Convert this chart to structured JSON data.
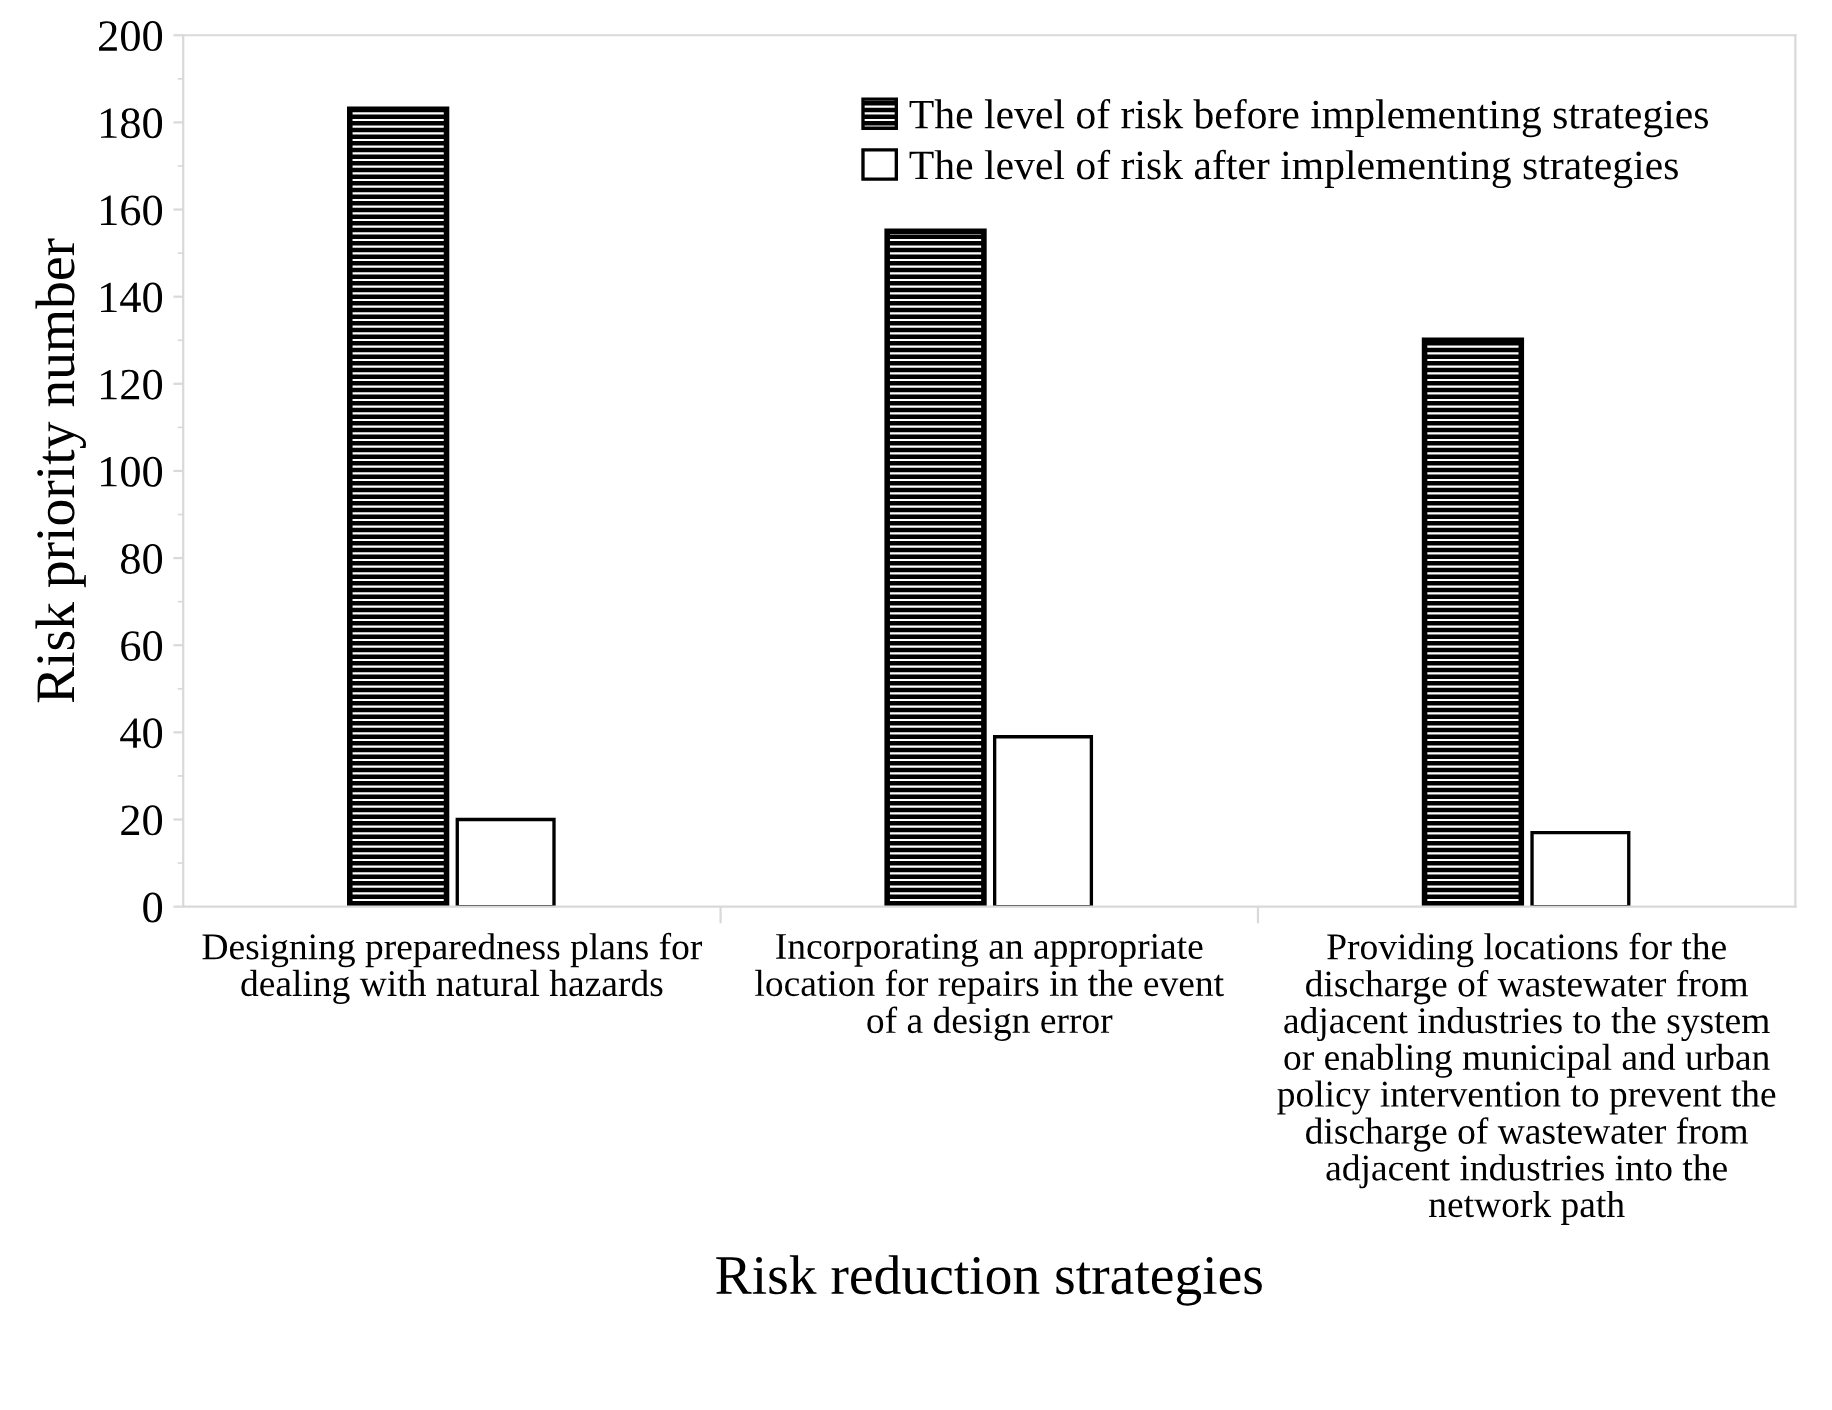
{
  "chart_data": {
    "type": "bar",
    "xlabel": "Risk reduction strategies",
    "ylabel": "Risk priority number",
    "categories": [
      "Designing preparedness plans for dealing with natural hazards",
      "Incorporating an appropriate location for repairs in the event of a design error",
      "Providing locations for the discharge of wastewater from adjacent industries to the system or enabling municipal and urban policy intervention to prevent the discharge of wastewater from adjacent industries into the network path"
    ],
    "series": [
      {
        "name": "The level of risk before implementing strategies",
        "color": "#000000",
        "values": [
          183,
          155,
          130
        ]
      },
      {
        "name": "The level of risk after implementing strategies",
        "color": "#ffffff",
        "values": [
          20,
          39,
          17
        ]
      }
    ],
    "ylim": [
      0,
      200
    ],
    "yticks": [
      0,
      20,
      40,
      60,
      80,
      100,
      120,
      140,
      160,
      180,
      200
    ],
    "grid": false,
    "legend": "top right"
  }
}
